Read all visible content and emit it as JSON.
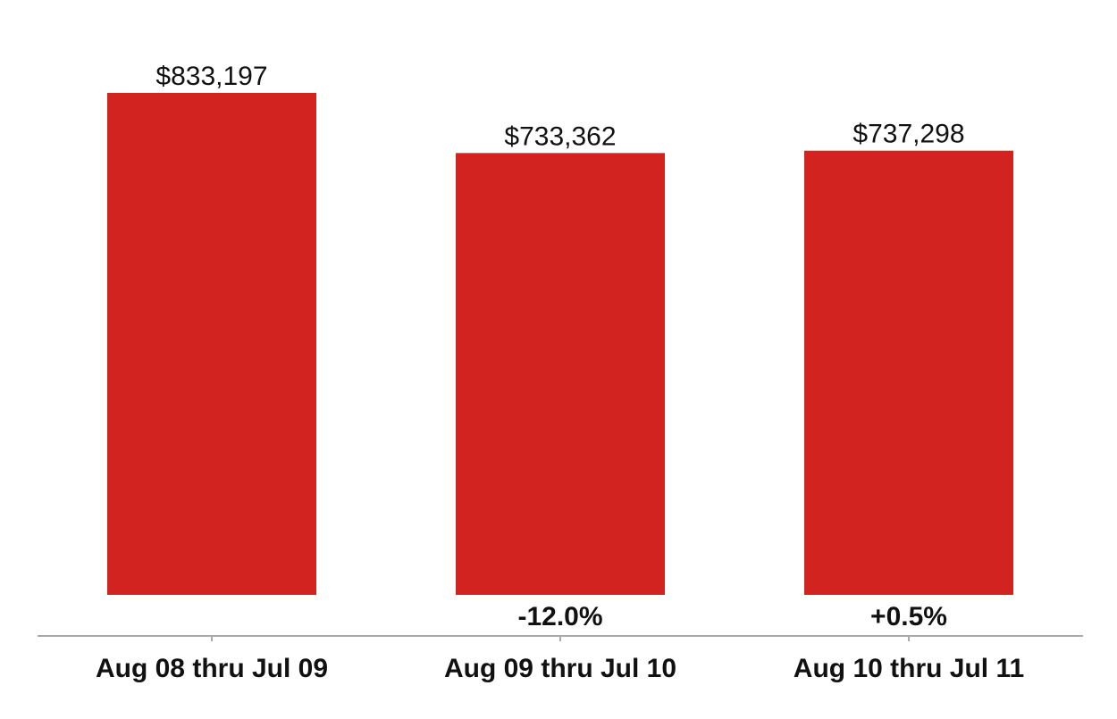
{
  "chart_data": {
    "type": "bar",
    "categories": [
      "Aug 08 thru Jul 09",
      "Aug 09 thru Jul 10",
      "Aug 10 thru Jul 11"
    ],
    "values": [
      833197,
      733362,
      737298
    ],
    "value_labels": [
      "$833,197",
      "$733,362",
      "$737,298"
    ],
    "change_labels": [
      "",
      "-12.0%",
      "+0.5%"
    ],
    "title": "",
    "xlabel": "",
    "ylabel": "",
    "ylim": [
      0,
      833197
    ],
    "grid": false,
    "legend": "none",
    "colors": {
      "bar": "#D22320",
      "axis": "#AAAAAA",
      "text": "#111111"
    }
  }
}
